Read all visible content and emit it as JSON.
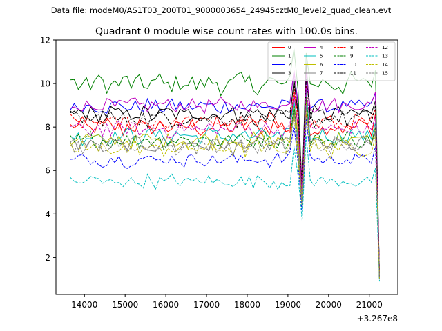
{
  "chart_data": {
    "type": "line",
    "suptitle": "Data file: modeM0/AS1T03_200T01_9000003654_24945cztM0_level2_quad_clean.evt",
    "title": "Quadrant 0 module wise count rates with 100.0s bins.",
    "xlabel": "",
    "ylabel": "",
    "x_offset_label": "+3.267e8",
    "xlim": [
      13300,
      21700
    ],
    "ylim": [
      0.3,
      12.0
    ],
    "xticks": [
      14000,
      15000,
      16000,
      17000,
      18000,
      19000,
      20000,
      21000
    ],
    "yticks": [
      2,
      4,
      6,
      8,
      10,
      12
    ],
    "grid": false,
    "legend_position": "top-right",
    "x": {
      "start": 13650,
      "step": 100,
      "count": 77
    },
    "series": [
      {
        "name": "0",
        "color": "#ff0000",
        "dash": "solid",
        "base": 8.0,
        "amp": 0.4,
        "dips": [
          4.8,
          4.3,
          8.6,
          1.2
        ]
      },
      {
        "name": "1",
        "color": "#008000",
        "dash": "solid",
        "base": 10.0,
        "amp": 0.45,
        "dips": [
          5.0,
          4.4,
          11.4,
          1.0
        ]
      },
      {
        "name": "2",
        "color": "#0000ff",
        "dash": "solid",
        "base": 8.95,
        "amp": 0.3,
        "dips": [
          4.6,
          4.2,
          10.2,
          1.1
        ]
      },
      {
        "name": "3",
        "color": "#000000",
        "dash": "solid",
        "base": 8.6,
        "amp": 0.35,
        "dips": [
          5.3,
          4.6,
          10.9,
          1.2
        ]
      },
      {
        "name": "4",
        "color": "#bf00bf",
        "dash": "solid",
        "base": 9.0,
        "amp": 0.3,
        "dips": [
          5.0,
          4.4,
          10.5,
          1.1
        ]
      },
      {
        "name": "5",
        "color": "#00bfbf",
        "dash": "solid",
        "base": 7.6,
        "amp": 0.35,
        "dips": [
          4.5,
          4.1,
          9.6,
          1.0
        ]
      },
      {
        "name": "6",
        "color": "#bfbf00",
        "dash": "solid",
        "base": 7.4,
        "amp": 0.35,
        "dips": [
          4.4,
          4.0,
          9.3,
          1.0
        ]
      },
      {
        "name": "7",
        "color": "#808080",
        "dash": "solid",
        "base": 7.2,
        "amp": 0.35,
        "dips": [
          4.2,
          3.9,
          9.0,
          1.0
        ]
      },
      {
        "name": "8",
        "color": "#ff0000",
        "dash": "dashed",
        "base": 8.2,
        "amp": 0.35,
        "dips": [
          5.0,
          4.5,
          9.9,
          1.1
        ]
      },
      {
        "name": "9",
        "color": "#008000",
        "dash": "dashed",
        "base": 7.4,
        "amp": 0.35,
        "dips": [
          4.5,
          4.1,
          9.4,
          1.0
        ]
      },
      {
        "name": "10",
        "color": "#0000ff",
        "dash": "dashed",
        "base": 6.5,
        "amp": 0.3,
        "dips": [
          4.0,
          3.8,
          8.4,
          1.0
        ]
      },
      {
        "name": "11",
        "color": "#000000",
        "dash": "dashed",
        "base": 8.4,
        "amp": 0.35,
        "dips": [
          5.0,
          4.5,
          10.2,
          1.1
        ]
      },
      {
        "name": "12",
        "color": "#bf00bf",
        "dash": "dashed",
        "base": 7.9,
        "amp": 0.35,
        "dips": [
          4.8,
          4.3,
          9.8,
          1.1
        ]
      },
      {
        "name": "13",
        "color": "#00bfbf",
        "dash": "dashed",
        "base": 5.5,
        "amp": 0.3,
        "dips": [
          3.7,
          3.4,
          7.6,
          0.9
        ]
      },
      {
        "name": "14",
        "color": "#bfbf00",
        "dash": "dashed",
        "base": 7.0,
        "amp": 0.4,
        "dips": [
          4.3,
          4.0,
          8.8,
          1.0
        ]
      },
      {
        "name": "15",
        "color": "#808080",
        "dash": "dashed",
        "base": 7.1,
        "amp": 0.35,
        "dips": [
          4.4,
          4.0,
          9.0,
          1.0
        ]
      }
    ]
  }
}
